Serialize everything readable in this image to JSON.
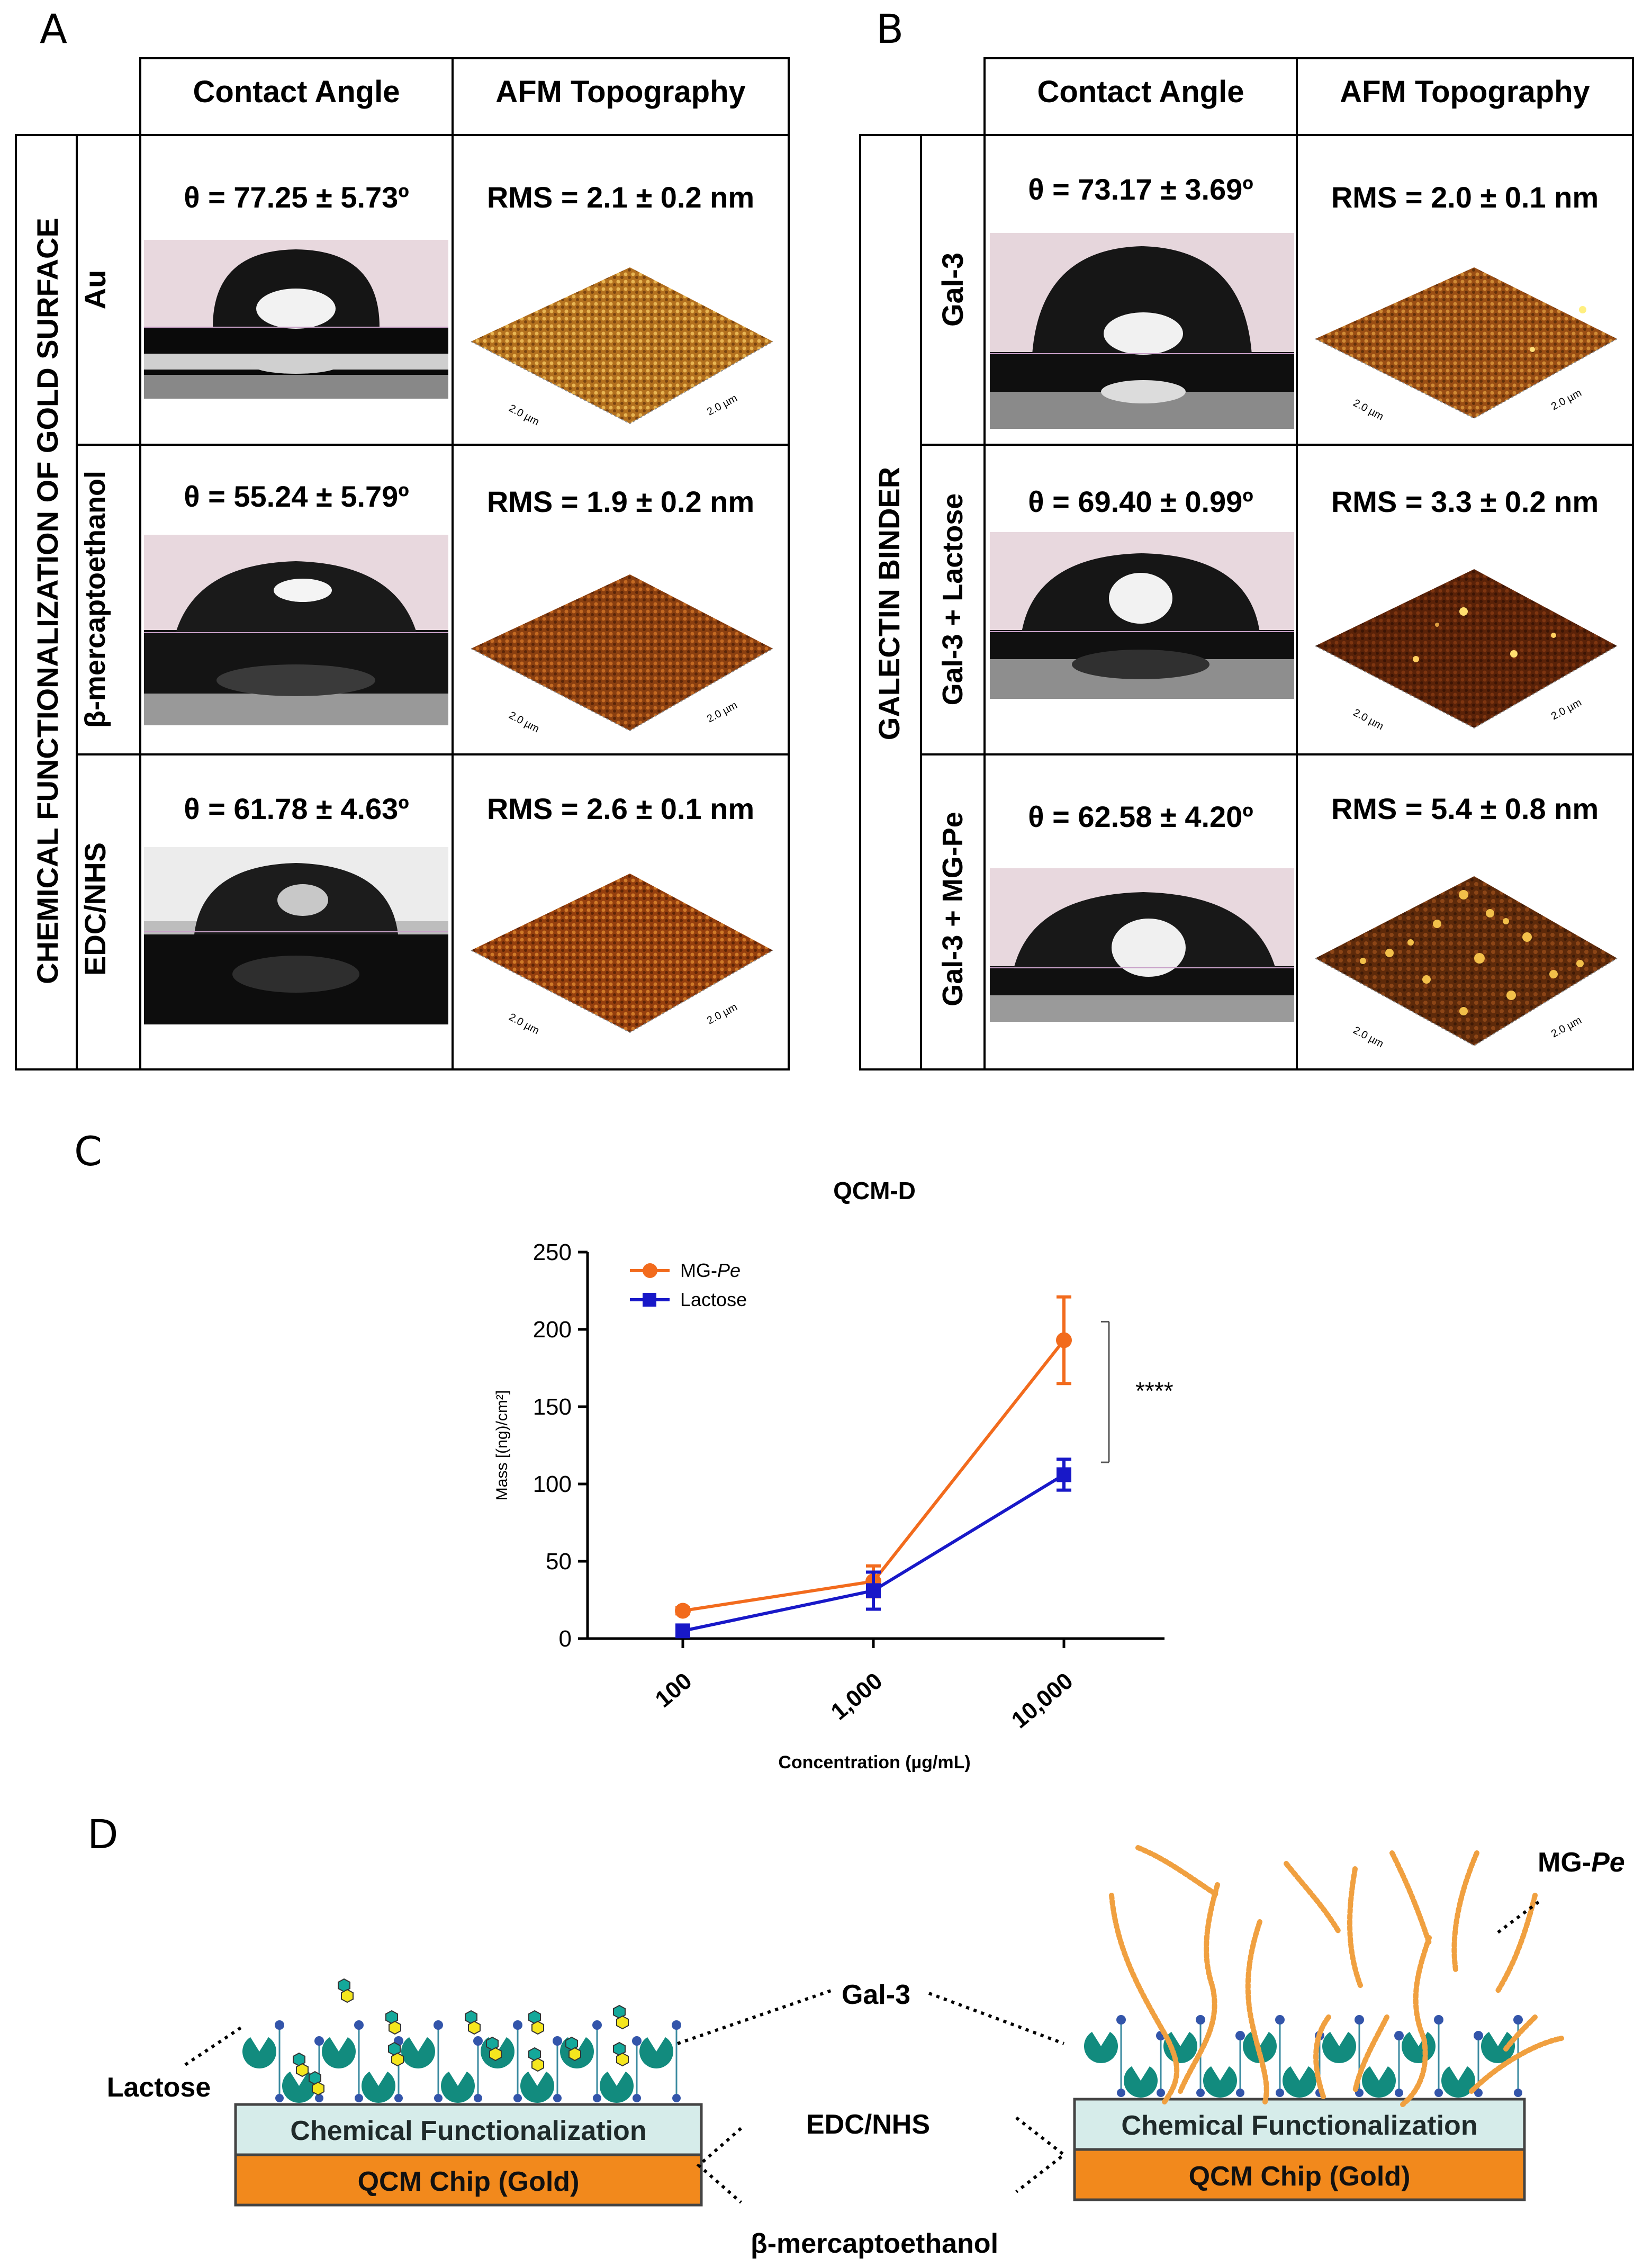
{
  "panels": {
    "a": {
      "letter": "A",
      "col_headers": [
        "Contact Angle",
        "AFM Topography"
      ],
      "side_label": "CHEMICAL  FUNCTIONALIZATION  OF GOLD SURFACE",
      "rows": [
        {
          "label": "Au",
          "angle": "θ = 77.25 ± 5.73º",
          "rms": "RMS = 2.1  ±  0.2 nm"
        },
        {
          "label": "β-mercaptoethanol",
          "angle": "θ = 55.24 ± 5.79º",
          "rms": "RMS = 1.9  ±  0.2 nm"
        },
        {
          "label": "EDC/NHS",
          "angle": "θ = 61.78 ± 4.63º",
          "rms": "RMS = 2.6  ±  0.1 nm"
        }
      ]
    },
    "b": {
      "letter": "B",
      "col_headers": [
        "Contact Angle",
        "AFM Topography"
      ],
      "side_label": "GALECTIN BINDER",
      "rows": [
        {
          "label": "Gal-3",
          "angle": "θ = 73.17 ± 3.69º",
          "rms": "RMS = 2.0  ±  0.1 nm"
        },
        {
          "label": "Gal-3 + Lactose",
          "angle": "θ = 69.40 ± 0.99º",
          "rms": "RMS = 3.3  ±  0.2 nm"
        },
        {
          "label": "Gal-3 + MG-Pe",
          "angle": "θ = 62.58 ± 4.20º",
          "rms": "RMS = 5.4  ±  0.8 nm"
        }
      ]
    },
    "afm_axis_label": "2.0 µm",
    "c": {
      "letter": "C"
    },
    "d": {
      "letter": "D",
      "labels": {
        "lactose": "Lactose",
        "gal3": "Gal-3",
        "edc": "EDC/NHS",
        "bme": "β-mercaptoethanol",
        "mgpe": "MG-",
        "mgpe_italic": "Pe",
        "chem_left": "Chemical Functionalization",
        "chip_left": "QCM Chip (Gold)",
        "chem_right": "Chemical Functionalization",
        "chip_right": "QCM Chip (Gold)"
      }
    }
  },
  "chart_data": {
    "type": "line",
    "title": "QCM-D",
    "xlabel": "Concentration (µg/mL)",
    "ylabel": "Mass [(ng)/cm²]",
    "categories": [
      "100",
      "1,000",
      "10,000"
    ],
    "ylim": [
      0,
      250
    ],
    "yticks": [
      "0",
      "50",
      "100",
      "150",
      "200",
      "250"
    ],
    "series": [
      {
        "name": "MG-",
        "name_italic": "Pe",
        "color": "#f26b1d",
        "marker": "circle",
        "values": [
          18,
          37,
          193
        ],
        "errors": [
          2,
          10,
          28
        ]
      },
      {
        "name": "Lactose",
        "name_italic": "",
        "color": "#1818c8",
        "marker": "square",
        "values": [
          5,
          31,
          106
        ],
        "errors": [
          1,
          12,
          10
        ]
      }
    ],
    "significance": "****"
  }
}
